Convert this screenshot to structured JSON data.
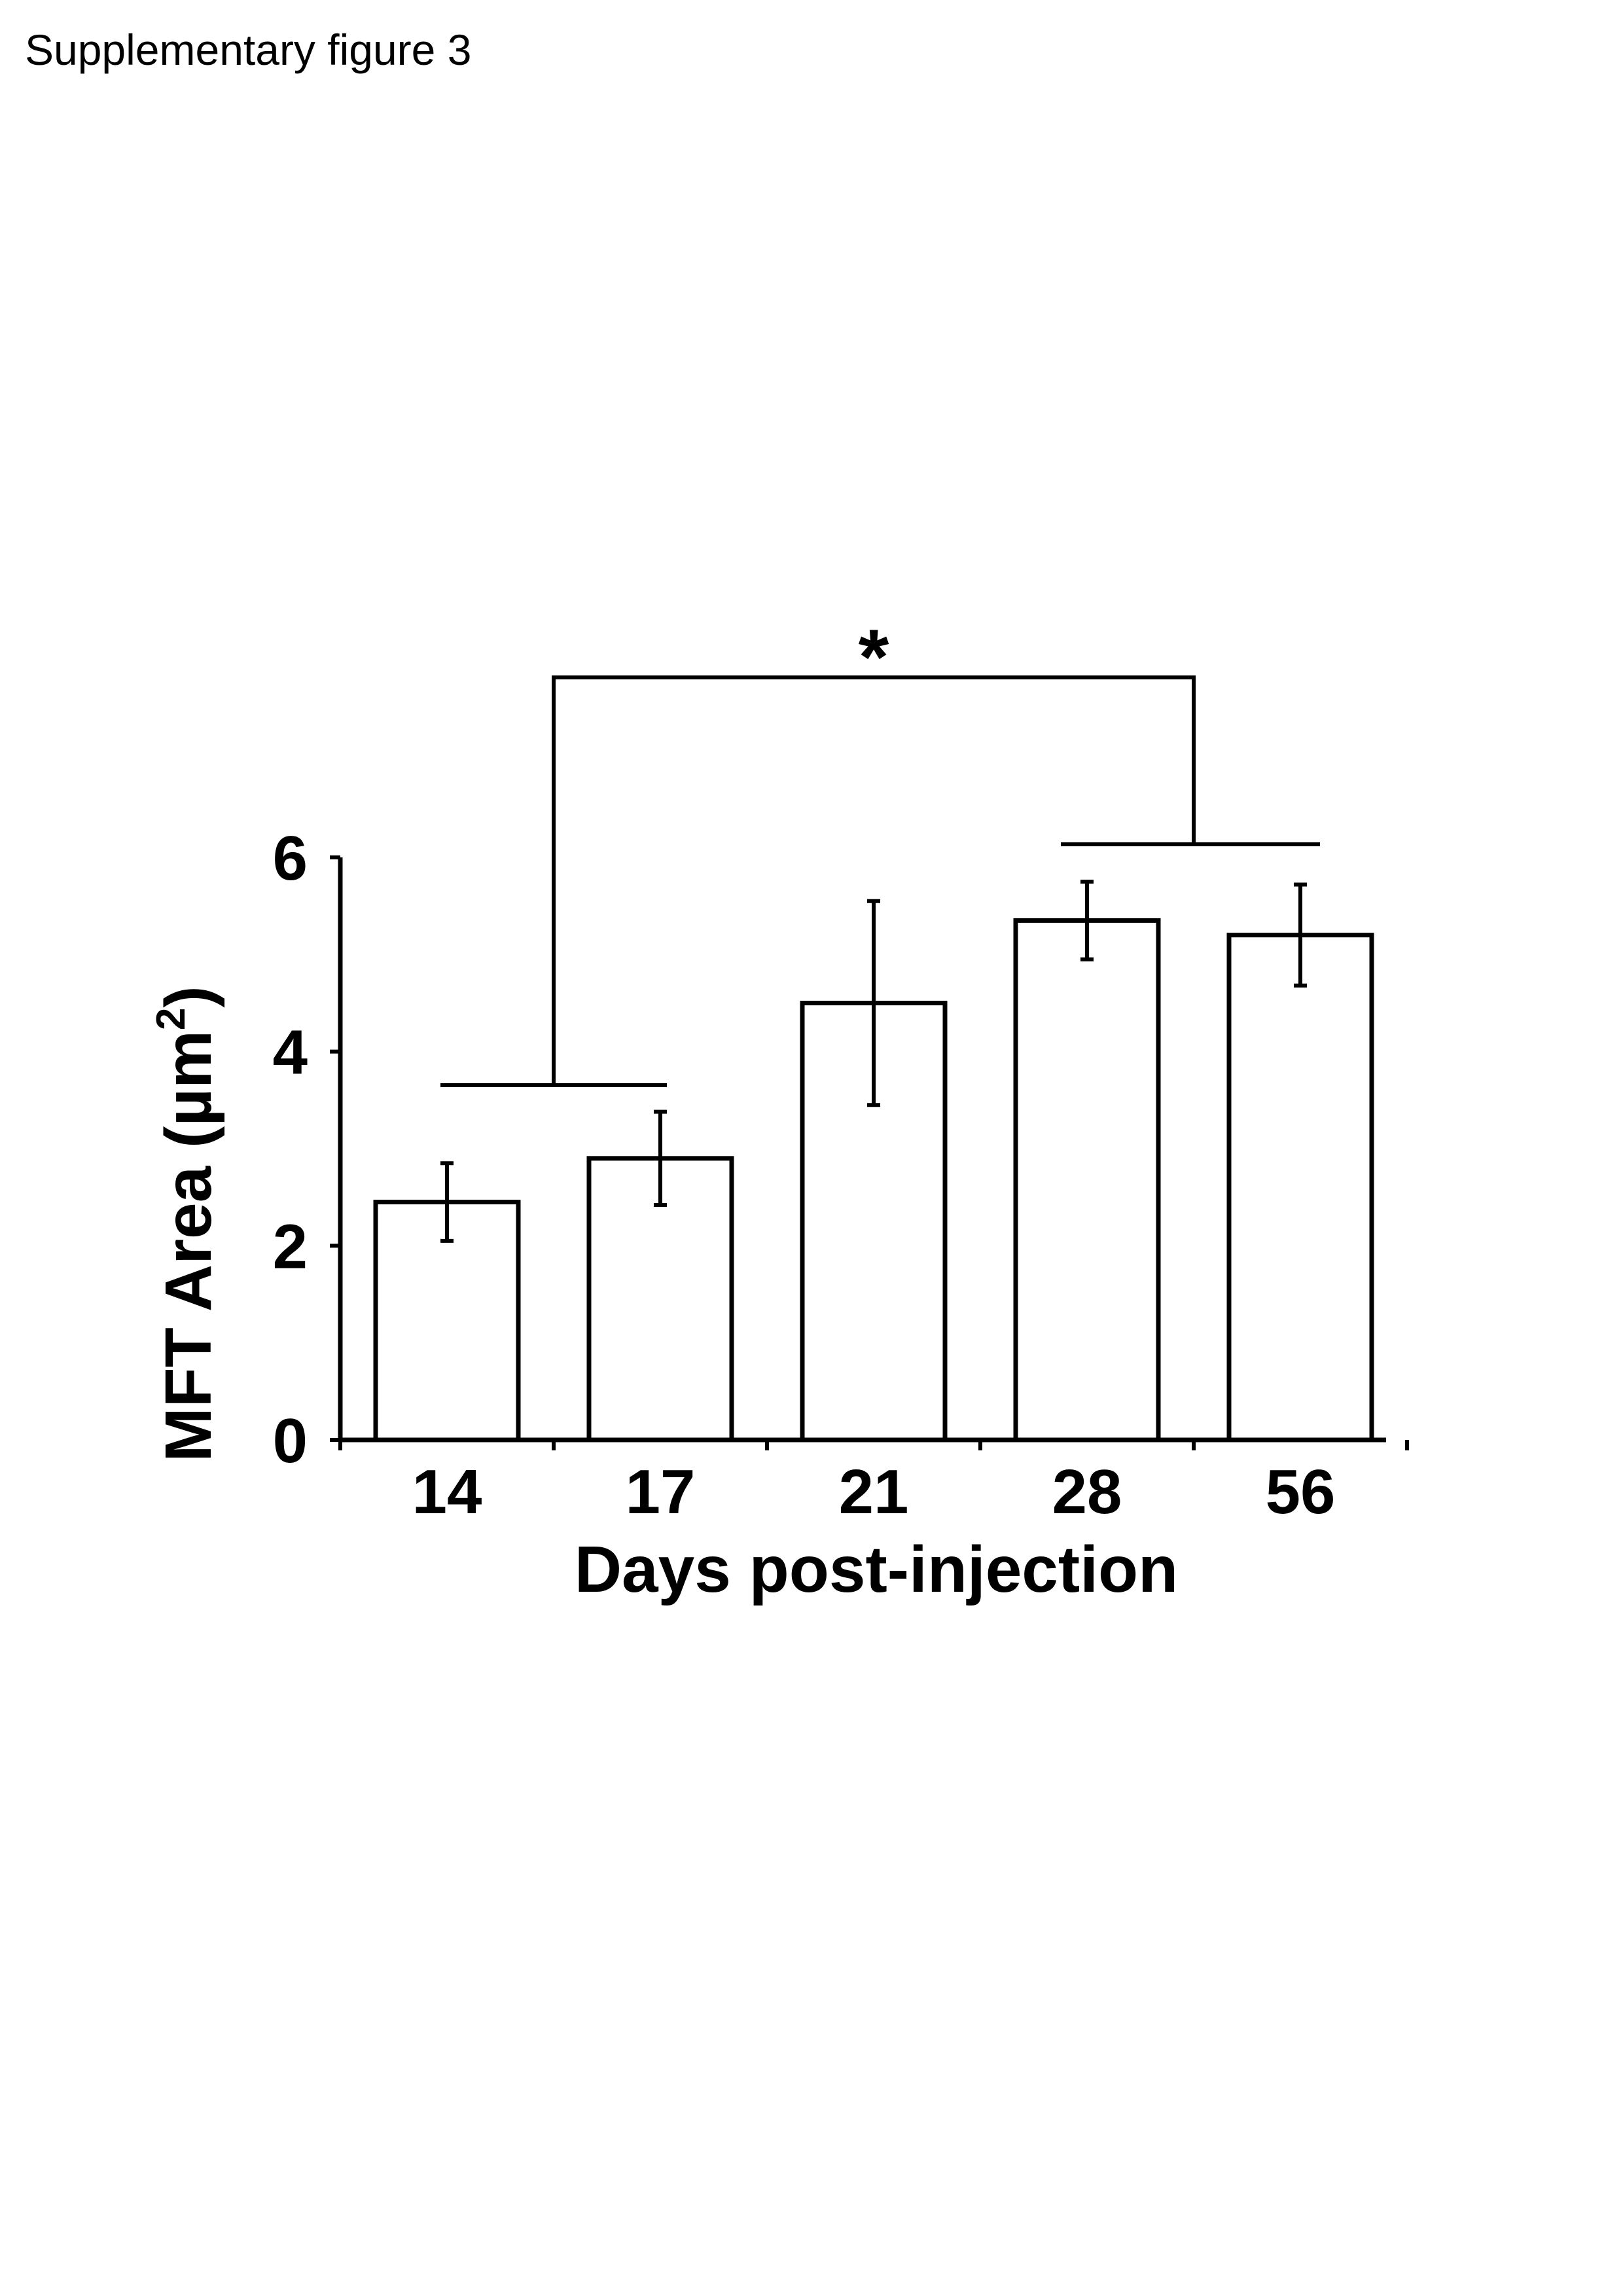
{
  "page_title": "Supplementary figure 3",
  "chart_data": {
    "type": "bar",
    "categories": [
      "14",
      "17",
      "21",
      "28",
      "56"
    ],
    "values": [
      2.45,
      2.9,
      4.5,
      5.35,
      5.2
    ],
    "errors": [
      0.4,
      0.48,
      1.05,
      0.4,
      0.52
    ],
    "xlabel": "Days post-injection",
    "ylabel": {
      "main": "MFT Area (µm",
      "superscript": "2",
      "close": ")"
    },
    "ylim": [
      0,
      6
    ],
    "yticks": [
      "0",
      "2",
      "4",
      "6"
    ],
    "grid": false,
    "bar_fill": "#ffffff",
    "bar_stroke": "#000000",
    "significance": {
      "label": "*",
      "group_a": [
        "14",
        "17"
      ],
      "group_b": [
        "28",
        "56"
      ]
    }
  }
}
